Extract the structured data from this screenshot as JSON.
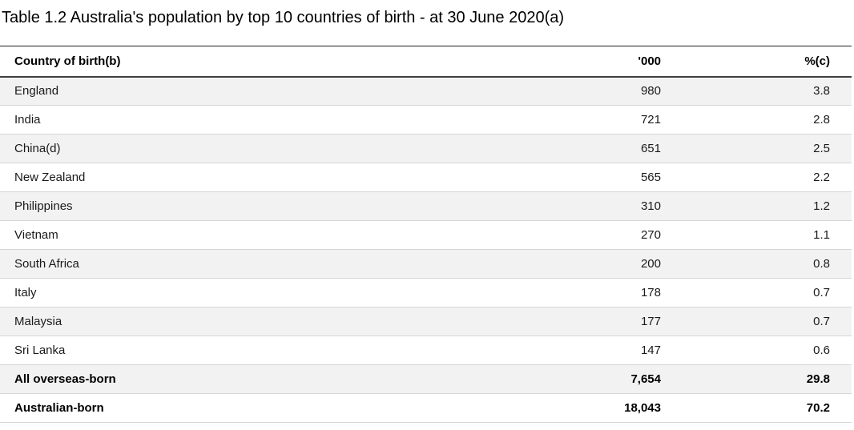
{
  "title": "Table 1.2 Australia's population by top 10 countries of birth - at 30 June 2020(a)",
  "table": {
    "columns": [
      {
        "label": "Country of birth(b)"
      },
      {
        "label": "'000"
      },
      {
        "label": "%(c)"
      }
    ],
    "rows": [
      {
        "country": "England",
        "thousands": "980",
        "percent": "3.8"
      },
      {
        "country": "India",
        "thousands": "721",
        "percent": "2.8"
      },
      {
        "country": "China(d)",
        "thousands": "651",
        "percent": "2.5"
      },
      {
        "country": "New Zealand",
        "thousands": "565",
        "percent": "2.2"
      },
      {
        "country": "Philippines",
        "thousands": "310",
        "percent": "1.2"
      },
      {
        "country": "Vietnam",
        "thousands": "270",
        "percent": "1.1"
      },
      {
        "country": "South Africa",
        "thousands": "200",
        "percent": "0.8"
      },
      {
        "country": "Italy",
        "thousands": "178",
        "percent": "0.7"
      },
      {
        "country": "Malaysia",
        "thousands": "177",
        "percent": "0.7"
      },
      {
        "country": "Sri Lanka",
        "thousands": "147",
        "percent": "0.6"
      },
      {
        "country": "All overseas-born",
        "thousands": "7,654",
        "percent": "29.8"
      },
      {
        "country": "Australian-born",
        "thousands": "18,043",
        "percent": "70.2"
      }
    ]
  },
  "chart_data": {
    "type": "table",
    "title": "Table 1.2 Australia's population by top 10 countries of birth - at 30 June 2020(a)",
    "columns": [
      "Country of birth(b)",
      "'000",
      "%(c)"
    ],
    "rows": [
      [
        "England",
        980,
        3.8
      ],
      [
        "India",
        721,
        2.8
      ],
      [
        "China(d)",
        651,
        2.5
      ],
      [
        "New Zealand",
        565,
        2.2
      ],
      [
        "Philippines",
        310,
        1.2
      ],
      [
        "Vietnam",
        270,
        1.1
      ],
      [
        "South Africa",
        200,
        0.8
      ],
      [
        "Italy",
        178,
        0.7
      ],
      [
        "Malaysia",
        177,
        0.7
      ],
      [
        "Sri Lanka",
        147,
        0.6
      ],
      [
        "All overseas-born",
        7654,
        29.8
      ],
      [
        "Australian-born",
        18043,
        70.2
      ]
    ],
    "notes": "Rows 'All overseas-born' and 'Australian-born' are totals shown in bold; zebra striping on alternating rows; numeric columns right-aligned"
  },
  "colors": {
    "stripe_row_background": "#f2f2f3",
    "header_rule_dark": "#3f3f3f",
    "row_divider": "#d6d6d6"
  }
}
